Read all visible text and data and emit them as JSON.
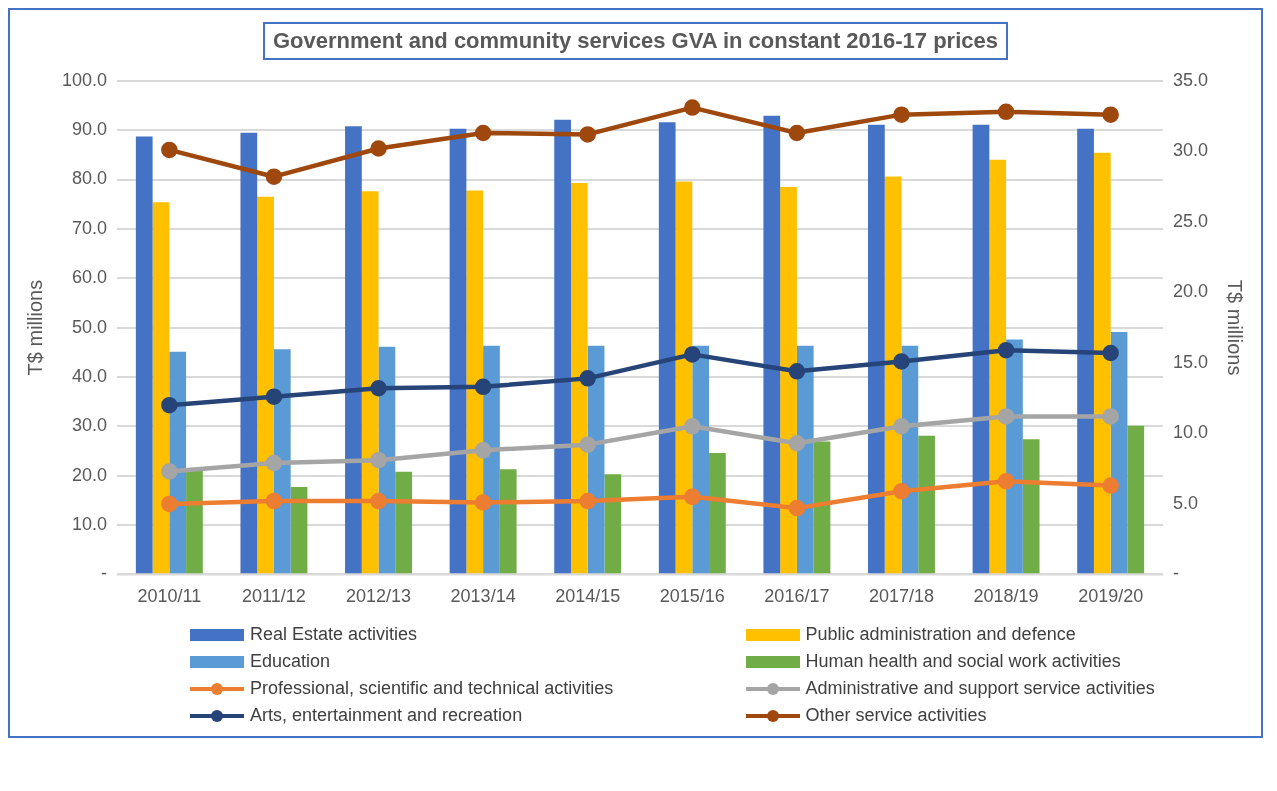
{
  "chart_data": {
    "type": "bar",
    "title": "Government and community services GVA in constant 2016-17 prices",
    "ylabel": "T$ millions",
    "y2label": "T$ millions",
    "categories": [
      "2010/11",
      "2011/12",
      "2012/13",
      "2013/14",
      "2014/15",
      "2015/16",
      "2016/17",
      "2017/18",
      "2018/19",
      "2019/20"
    ],
    "series": [
      {
        "name": "Real Estate activities",
        "color": "#4472c4",
        "values": [
          88.7,
          89.5,
          90.8,
          90.3,
          92.1,
          91.6,
          92.9,
          91.1,
          91.1,
          90.3
        ]
      },
      {
        "name": "Public administration and defence",
        "color": "#ffc000",
        "values": [
          75.4,
          76.5,
          77.6,
          77.8,
          79.3,
          79.6,
          78.5,
          80.6,
          84.0,
          85.4
        ]
      },
      {
        "name": "Education",
        "color": "#5b9bd5",
        "values": [
          45.1,
          45.6,
          46.1,
          46.3,
          46.3,
          46.3,
          46.3,
          46.3,
          47.6,
          49.1
        ]
      },
      {
        "name": "Human health and social work activities",
        "color": "#70ad47",
        "values": [
          21.0,
          17.7,
          20.8,
          21.3,
          20.3,
          24.6,
          26.9,
          28.1,
          27.4,
          30.1
        ]
      },
      {
        "name": "Professional, scientific and technical activities",
        "type": "line",
        "axis": "y2",
        "color": "#ed7d31",
        "values": [
          5.0,
          5.2,
          5.2,
          5.1,
          5.2,
          5.5,
          4.7,
          5.9,
          6.6,
          6.3
        ]
      },
      {
        "name": "Administrative and support service activities",
        "type": "line",
        "axis": "y2",
        "color": "#a5a5a5",
        "values": [
          7.3,
          7.9,
          8.1,
          8.8,
          9.2,
          10.5,
          9.3,
          10.5,
          11.2,
          11.2
        ]
      },
      {
        "name": "Arts, entertainment and recreation",
        "type": "line",
        "axis": "y2",
        "color": "#264478",
        "values": [
          12.0,
          12.6,
          13.2,
          13.3,
          13.9,
          15.6,
          14.4,
          15.1,
          15.9,
          15.7
        ]
      },
      {
        "name": "Other service activities",
        "type": "line",
        "axis": "y2",
        "color": "#9e480e",
        "values": [
          30.1,
          28.2,
          30.2,
          31.3,
          31.2,
          33.1,
          31.3,
          32.6,
          32.8,
          32.6
        ]
      }
    ],
    "ylim": [
      0,
      100
    ],
    "yticks": [
      {
        "value": 0,
        "label": "-"
      },
      {
        "value": 10,
        "label": "10.0"
      },
      {
        "value": 20,
        "label": "20.0"
      },
      {
        "value": 30,
        "label": "30.0"
      },
      {
        "value": 40,
        "label": "40.0"
      },
      {
        "value": 50,
        "label": "50.0"
      },
      {
        "value": 60,
        "label": "60.0"
      },
      {
        "value": 70,
        "label": "70.0"
      },
      {
        "value": 80,
        "label": "80.0"
      },
      {
        "value": 90,
        "label": "90.0"
      },
      {
        "value": 100,
        "label": "100.0"
      }
    ],
    "y2lim": [
      0,
      35
    ],
    "y2ticks": [
      {
        "value": 0,
        "label": "-"
      },
      {
        "value": 5,
        "label": "5.0"
      },
      {
        "value": 10,
        "label": "10.0"
      },
      {
        "value": 15,
        "label": "15.0"
      },
      {
        "value": 20,
        "label": "20.0"
      },
      {
        "value": 25,
        "label": "25.0"
      },
      {
        "value": 30,
        "label": "30.0"
      },
      {
        "value": 35,
        "label": "35.0"
      }
    ],
    "grid": "y",
    "legend": "bottom",
    "marker": "circle",
    "line_style": "solid"
  }
}
